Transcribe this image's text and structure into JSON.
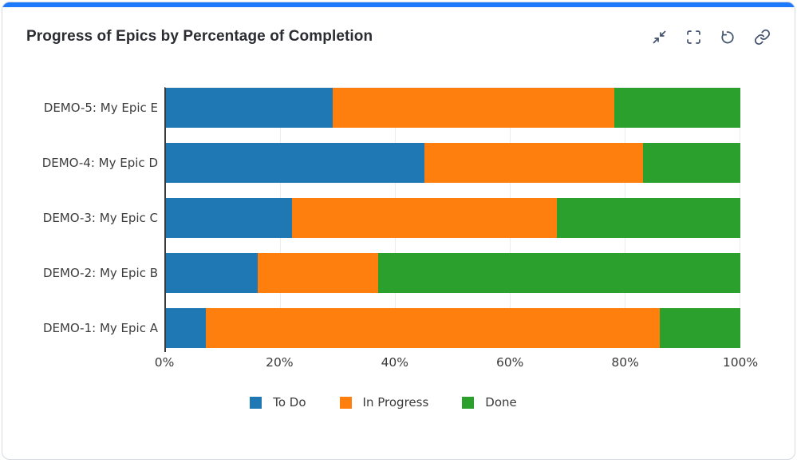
{
  "card": {
    "accent_color": "#1d7afc",
    "border_color": "#d5d9e0"
  },
  "header": {
    "title": "Progress of Epics by Percentage of Completion",
    "actions": [
      {
        "name": "collapse",
        "icon": "collapse-icon"
      },
      {
        "name": "fullscreen",
        "icon": "fullscreen-icon"
      },
      {
        "name": "reset",
        "icon": "reset-icon"
      },
      {
        "name": "link",
        "icon": "link-icon"
      }
    ],
    "icon_color": "#44546f"
  },
  "chart_data": {
    "type": "bar",
    "orientation": "horizontal",
    "stacked": true,
    "title": "Progress of Epics by Percentage of Completion",
    "categories": [
      "DEMO-5: My Epic E",
      "DEMO-4: My Epic D",
      "DEMO-3: My Epic C",
      "DEMO-2: My Epic B",
      "DEMO-1: My Epic A"
    ],
    "series": [
      {
        "name": "To Do",
        "color": "#1f77b4",
        "values": [
          29,
          45,
          22,
          16,
          7
        ]
      },
      {
        "name": "In Progress",
        "color": "#ff7f0e",
        "values": [
          49,
          38,
          46,
          21,
          79
        ]
      },
      {
        "name": "Done",
        "color": "#2ca02c",
        "values": [
          22,
          17,
          32,
          63,
          14
        ]
      }
    ],
    "x_ticks": [
      "0%",
      "20%",
      "40%",
      "60%",
      "80%",
      "100%"
    ],
    "xlim": [
      0,
      100
    ],
    "unit": "percent",
    "grid": "vertical-light",
    "legend_position": "bottom"
  }
}
